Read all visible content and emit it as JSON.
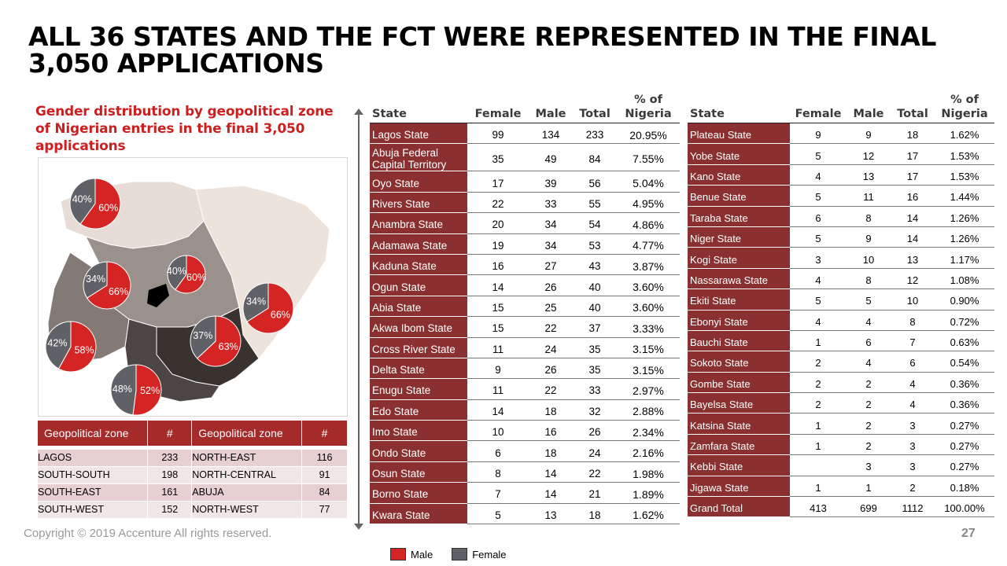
{
  "title": "ALL 36 STATES AND THE FCT WERE REPRESENTED IN THE FINAL 3,050 APPLICATIONS",
  "subtitle": "Gender distribution by geopolitical zone of Nigerian entries in the final 3,050 applications",
  "colors": {
    "male": "#d42424",
    "female": "#5f6166",
    "header": "#a52a2a",
    "state_cell": "#8b3030"
  },
  "legend": {
    "male": "Male",
    "female": "Female"
  },
  "chart_data": [
    {
      "type": "pie",
      "title": "Gender distribution by geopolitical zone of Nigerian entries in the final 3,050 applications",
      "pies": [
        {
          "female_label": "40%",
          "male_label": "60%",
          "female": 40,
          "male": 60
        },
        {
          "female_label": "34%",
          "male_label": "66%",
          "female": 34,
          "male": 66
        },
        {
          "female_label": "40%",
          "male_label": "60%",
          "female": 40,
          "male": 60
        },
        {
          "female_label": "34%",
          "male_label": "66%",
          "female": 34,
          "male": 66
        },
        {
          "female_label": "42%",
          "male_label": "58%",
          "female": 42,
          "male": 58
        },
        {
          "female_label": "37%",
          "male_label": "63%",
          "female": 37,
          "male": 63
        },
        {
          "female_label": "48%",
          "male_label": "52%",
          "female": 48,
          "male": 52
        }
      ]
    },
    {
      "type": "table",
      "headers": [
        "Geopolitical zone",
        "#",
        "Geopolitical zone",
        "#"
      ],
      "rows": [
        [
          "LAGOS",
          "233",
          "NORTH-EAST",
          "116"
        ],
        [
          "SOUTH-SOUTH",
          "198",
          "NORTH-CENTRAL",
          "91"
        ],
        [
          "SOUTH-EAST",
          "161",
          "ABUJA",
          "84"
        ],
        [
          "SOUTH-WEST",
          "152",
          "NORTH-WEST",
          "77"
        ]
      ]
    },
    {
      "type": "table",
      "headers": [
        "State",
        "Female",
        "Male",
        "Total",
        "% of Nigeria"
      ],
      "rows": [
        [
          "Lagos State",
          "99",
          "134",
          "233",
          "20.95%"
        ],
        [
          "Abuja Federal Capital Territory",
          "35",
          "49",
          "84",
          "7.55%"
        ],
        [
          "Oyo State",
          "17",
          "39",
          "56",
          "5.04%"
        ],
        [
          "Rivers State",
          "22",
          "33",
          "55",
          "4.95%"
        ],
        [
          "Anambra State",
          "20",
          "34",
          "54",
          "4.86%"
        ],
        [
          "Adamawa State",
          "19",
          "34",
          "53",
          "4.77%"
        ],
        [
          "Kaduna State",
          "16",
          "27",
          "43",
          "3.87%"
        ],
        [
          "Ogun State",
          "14",
          "26",
          "40",
          "3.60%"
        ],
        [
          "Abia State",
          "15",
          "25",
          "40",
          "3.60%"
        ],
        [
          "Akwa Ibom State",
          "15",
          "22",
          "37",
          "3.33%"
        ],
        [
          "Cross River State",
          "11",
          "24",
          "35",
          "3.15%"
        ],
        [
          "Delta State",
          "9",
          "26",
          "35",
          "3.15%"
        ],
        [
          "Enugu State",
          "11",
          "22",
          "33",
          "2.97%"
        ],
        [
          "Edo State",
          "14",
          "18",
          "32",
          "2.88%"
        ],
        [
          "Imo State",
          "10",
          "16",
          "26",
          "2.34%"
        ],
        [
          "Ondo State",
          "6",
          "18",
          "24",
          "2.16%"
        ],
        [
          "Osun State",
          "8",
          "14",
          "22",
          "1.98%"
        ],
        [
          "Borno State",
          "7",
          "14",
          "21",
          "1.89%"
        ],
        [
          "Kwara State",
          "5",
          "13",
          "18",
          "1.62%"
        ]
      ]
    },
    {
      "type": "table",
      "headers": [
        "State",
        "Female",
        "Male",
        "Total",
        "% of Nigeria"
      ],
      "rows": [
        [
          "Plateau State",
          "9",
          "9",
          "18",
          "1.62%"
        ],
        [
          "Yobe State",
          "5",
          "12",
          "17",
          "1.53%"
        ],
        [
          "Kano State",
          "4",
          "13",
          "17",
          "1.53%"
        ],
        [
          "Benue State",
          "5",
          "11",
          "16",
          "1.44%"
        ],
        [
          "Taraba State",
          "6",
          "8",
          "14",
          "1.26%"
        ],
        [
          "Niger State",
          "5",
          "9",
          "14",
          "1.26%"
        ],
        [
          "Kogi State",
          "3",
          "10",
          "13",
          "1.17%"
        ],
        [
          "Nassarawa State",
          "4",
          "8",
          "12",
          "1.08%"
        ],
        [
          "Ekiti State",
          "5",
          "5",
          "10",
          "0.90%"
        ],
        [
          "Ebonyi State",
          "4",
          "4",
          "8",
          "0.72%"
        ],
        [
          "Bauchi State",
          "1",
          "6",
          "7",
          "0.63%"
        ],
        [
          "Sokoto State",
          "2",
          "4",
          "6",
          "0.54%"
        ],
        [
          "Gombe State",
          "2",
          "2",
          "4",
          "0.36%"
        ],
        [
          "Bayelsa State",
          "2",
          "2",
          "4",
          "0.36%"
        ],
        [
          "Katsina State",
          "1",
          "2",
          "3",
          "0.27%"
        ],
        [
          "Zamfara State",
          "1",
          "2",
          "3",
          "0.27%"
        ],
        [
          "Kebbi State",
          "",
          "3",
          "3",
          "0.27%"
        ],
        [
          "Jigawa State",
          "1",
          "1",
          "2",
          "0.18%"
        ],
        [
          "Grand Total",
          "413",
          "699",
          "1112",
          "100.00%"
        ]
      ]
    }
  ],
  "footer": {
    "copyright": "Copyright © 2019 Accenture  All rights reserved.",
    "page": "27"
  }
}
